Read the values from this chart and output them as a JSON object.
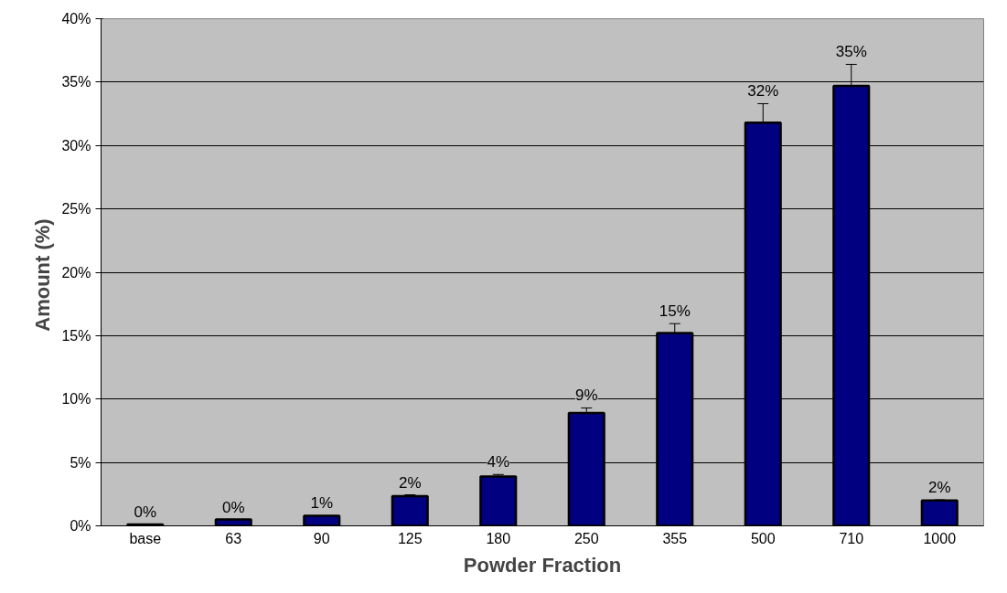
{
  "chart_data": {
    "type": "bar",
    "xlabel": "Powder Fraction",
    "ylabel": "Amount  (%)",
    "categories": [
      "base",
      "63",
      "90",
      "125",
      "180",
      "250",
      "355",
      "500",
      "710",
      "1000"
    ],
    "values": [
      0.1,
      0.5,
      0.8,
      2.35,
      3.9,
      8.9,
      15.2,
      31.8,
      34.7,
      2.0
    ],
    "errors": [
      null,
      null,
      null,
      0.1,
      0.15,
      0.4,
      0.75,
      1.5,
      1.7,
      0.05
    ],
    "value_labels": [
      "0%",
      "0%",
      "1%",
      "2%",
      "4%",
      "9%",
      "15%",
      "32%",
      "35%",
      "2%"
    ],
    "color": "#000080",
    "ylim": [
      0,
      40
    ],
    "yticks": [
      {
        "value": 0,
        "label": "0%"
      },
      {
        "value": 5,
        "label": "5%"
      },
      {
        "value": 10,
        "label": "10%"
      },
      {
        "value": 15,
        "label": "15%"
      },
      {
        "value": 20,
        "label": "20%"
      },
      {
        "value": 25,
        "label": "25%"
      },
      {
        "value": 30,
        "label": "30%"
      },
      {
        "value": 35,
        "label": "35%"
      },
      {
        "value": 40,
        "label": "40%"
      }
    ],
    "grid": "y"
  }
}
